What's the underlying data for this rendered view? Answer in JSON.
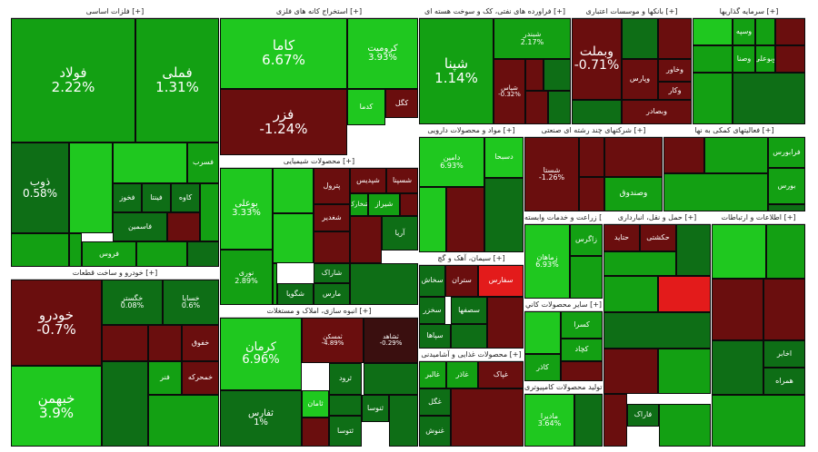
{
  "colors": {
    "up_strong": "#1fc81f",
    "up_mid": "#13a013",
    "up_weak": "#0e6e16",
    "down_weak": "#3a0f0f",
    "down_mid": "#6a0e0e",
    "down_strong": "#e31b1b"
  },
  "chart_data": {
    "type": "heatmap",
    "sectors": [
      {
        "name": "فلزات اساسی [+]",
        "tiles": [
          {
            "symbol": "فولاد",
            "change": "2.22%"
          },
          {
            "symbol": "فملی",
            "change": "1.31%"
          },
          {
            "symbol": "ذوب",
            "change": "0.58%"
          },
          {
            "symbol": "فخوز"
          },
          {
            "symbol": "فینتا"
          },
          {
            "symbol": "کاوه"
          },
          {
            "symbol": "فاسمین"
          },
          {
            "symbol": "فروس"
          },
          {
            "symbol": "فسرب"
          }
        ]
      },
      {
        "name": "استخراج کانه های فلزی [+]",
        "tiles": [
          {
            "symbol": "کاما",
            "change": "6.67%"
          },
          {
            "symbol": "کرومیت",
            "change": "3.93%"
          },
          {
            "symbol": "فزر",
            "change": "-1.24%"
          },
          {
            "symbol": "کگل"
          },
          {
            "symbol": "کدما"
          }
        ]
      },
      {
        "name": "فراورده های نفتی، کک و سوخت هسته ای [+]",
        "tiles": [
          {
            "symbol": "شپنا",
            "change": "1.14%"
          },
          {
            "symbol": "شبندر",
            "change": "2.17%"
          },
          {
            "symbol": "شپاس",
            "change": "-0.32%"
          }
        ]
      },
      {
        "name": "بانکها و موسسات اعتباری [+]",
        "tiles": [
          {
            "symbol": "وبملت",
            "change": "-0.71%"
          },
          {
            "symbol": "وپارس"
          },
          {
            "symbol": "وخاور"
          },
          {
            "symbol": "وکار"
          },
          {
            "symbol": "وبصادر"
          }
        ]
      },
      {
        "name": "سرمایه گذاریها [+]",
        "tiles": [
          {
            "symbol": "وسپه"
          },
          {
            "symbol": "وصنا"
          },
          {
            "symbol": "وبوعلی"
          }
        ]
      },
      {
        "name": "محصولات شیمیایی [+]",
        "tiles": [
          {
            "symbol": "بوعلی",
            "change": "3.33%"
          },
          {
            "symbol": "نوری",
            "change": "2.89%"
          },
          {
            "symbol": "شسپنا"
          },
          {
            "symbol": "شپدیس"
          },
          {
            "symbol": "پترول"
          },
          {
            "symbol": "شیراز"
          },
          {
            "symbol": "شخارک"
          },
          {
            "symbol": "آریا"
          },
          {
            "symbol": "شغدیر"
          },
          {
            "symbol": "شاراک"
          },
          {
            "symbol": "شگویا"
          },
          {
            "symbol": "مارس"
          }
        ]
      },
      {
        "name": "مواد و محصولات دارویی [+]",
        "tiles": [
          {
            "symbol": "دامین",
            "change": "6.93%"
          },
          {
            "symbol": "دسبحا"
          }
        ]
      },
      {
        "name": "شرکتهای چند رشته ای صنعتی [+]",
        "tiles": [
          {
            "symbol": "شستا",
            "change": "-1.26%"
          },
          {
            "symbol": "وصندوق"
          }
        ]
      },
      {
        "name": "فعالیتهای کمکی به نها [+]",
        "tiles": [
          {
            "symbol": "بورس"
          },
          {
            "symbol": "فرابورس"
          }
        ]
      },
      {
        "name": "خودرو و ساخت قطعات [+]",
        "tiles": [
          {
            "symbol": "خودرو",
            "change": "-0.7%"
          },
          {
            "symbol": "خبهمن",
            "change": "3.9%"
          },
          {
            "symbol": "خگستر",
            "change": "0.08%"
          },
          {
            "symbol": "خساپا",
            "change": "0.6%"
          },
          {
            "symbol": "خفوق"
          },
          {
            "symbol": "فنر"
          },
          {
            "symbol": "خمحرکه"
          }
        ]
      },
      {
        "name": "انبوه سازی، املاک و مستغلات [+]",
        "tiles": [
          {
            "symbol": "کرمان",
            "change": "6.96%"
          },
          {
            "symbol": "ثمسکن",
            "change": "-4.89%"
          },
          {
            "symbol": "ثشاهد",
            "change": "-0.29%"
          },
          {
            "symbol": "ثفارس",
            "change": "1%"
          },
          {
            "symbol": "ثامان"
          },
          {
            "symbol": "ثتوسا"
          },
          {
            "symbol": "ثرود"
          },
          {
            "symbol": "ثنوسا"
          }
        ]
      },
      {
        "name": "سیمان، آهک و گچ [+]",
        "tiles": [
          {
            "symbol": "ستران"
          },
          {
            "symbol": "سفارس"
          },
          {
            "symbol": "سخاش"
          },
          {
            "symbol": "سخزر"
          },
          {
            "symbol": "سپاها"
          },
          {
            "symbol": "سصفها"
          }
        ]
      },
      {
        "name": "زراعت و خدمات وابسته [+]",
        "tiles": [
          {
            "symbol": "زماهان",
            "change": "6.93%"
          },
          {
            "symbol": "زاگرس"
          }
        ]
      },
      {
        "name": "محصولات غذایی و آشامیدنی [+]",
        "tiles": [
          {
            "symbol": "غالبر"
          },
          {
            "symbol": "غاذر"
          },
          {
            "symbol": "غپاک"
          },
          {
            "symbol": "غگل"
          },
          {
            "symbol": "غنوش"
          }
        ]
      },
      {
        "name": "ساير محصولات كاني [+]",
        "tiles": [
          {
            "symbol": "کاذر"
          },
          {
            "symbol": "کسرا"
          },
          {
            "symbol": "کچاد"
          }
        ]
      },
      {
        "name": "تولید محصولات کامپیوتری [+]",
        "tiles": [
          {
            "symbol": "مادیرا",
            "change": "3.64%"
          },
          {
            "symbol": "فاراک"
          }
        ]
      },
      {
        "name": "حمل و نقل، انبارداری [+]",
        "tiles": [
          {
            "symbol": "حتاید"
          },
          {
            "symbol": "حکشتی"
          }
        ]
      },
      {
        "name": "اطلاعات و ارتباطات [+]",
        "tiles": [
          {
            "symbol": "اخابر"
          },
          {
            "symbol": "همراه"
          }
        ]
      }
    ]
  }
}
